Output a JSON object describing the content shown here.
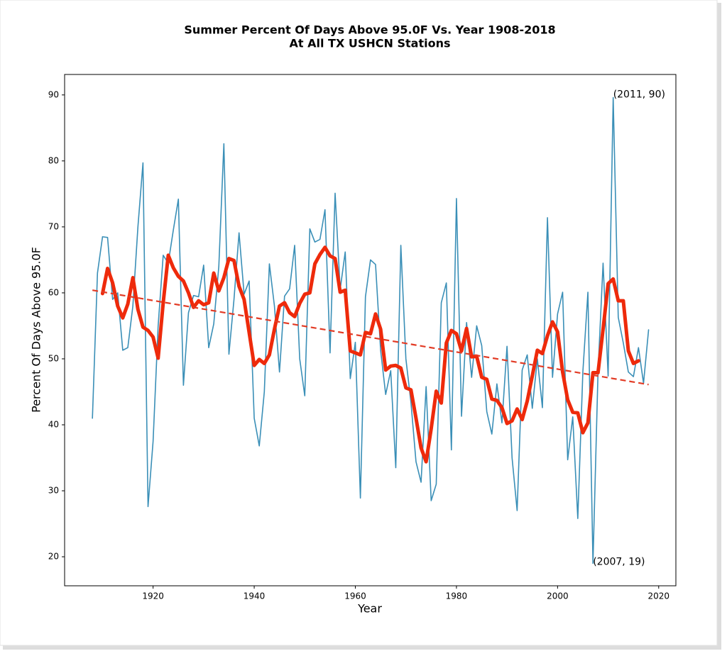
{
  "chart_data": {
    "type": "line",
    "title": "Summer Percent Of Days Above 95.0F Vs. Year 1908-2018",
    "subtitle": "At All TX USHCN Stations",
    "x_label": "Year",
    "y_label": "Percent Of Days Above 95.0F",
    "xlim": [
      1902.5,
      2023.4
    ],
    "ylim": [
      15.6,
      93.1
    ],
    "xticks": [
      1920,
      1940,
      1960,
      1980,
      2000,
      2020
    ],
    "yticks": [
      20,
      30,
      40,
      50,
      60,
      70,
      80,
      90
    ],
    "grid": false,
    "series": [
      {
        "color": "#3a8fb7",
        "linewidth": 1.6,
        "style": "solid",
        "x": [
          1908,
          1909,
          1910,
          1911,
          1912,
          1913,
          1914,
          1915,
          1916,
          1917,
          1918,
          1919,
          1920,
          1921,
          1922,
          1923,
          1924,
          1925,
          1926,
          1927,
          1928,
          1929,
          1930,
          1931,
          1932,
          1933,
          1934,
          1935,
          1936,
          1937,
          1938,
          1939,
          1940,
          1941,
          1942,
          1943,
          1944,
          1945,
          1946,
          1947,
          1948,
          1949,
          1950,
          1951,
          1952,
          1953,
          1954,
          1955,
          1956,
          1957,
          1958,
          1959,
          1960,
          1961,
          1962,
          1963,
          1964,
          1965,
          1966,
          1967,
          1968,
          1969,
          1970,
          1971,
          1972,
          1973,
          1974,
          1975,
          1976,
          1977,
          1978,
          1979,
          1980,
          1981,
          1982,
          1983,
          1984,
          1985,
          1986,
          1987,
          1988,
          1989,
          1990,
          1991,
          1992,
          1993,
          1994,
          1995,
          1996,
          1997,
          1998,
          1999,
          2000,
          2001,
          2002,
          2003,
          2004,
          2005,
          2006,
          2007,
          2008,
          2009,
          2010,
          2011,
          2012,
          2013,
          2014,
          2015,
          2016,
          2017,
          2018
        ],
        "values": [
          41,
          63,
          68.5,
          68.4,
          59,
          60,
          51.3,
          51.7,
          58,
          70,
          79.7,
          27.6,
          37.5,
          55,
          65.7,
          64.5,
          69.5,
          74.2,
          46,
          57,
          59.6,
          59.4,
          64.2,
          51.7,
          55.3,
          64,
          82.6,
          50.7,
          59,
          69.1,
          59.8,
          61.8,
          41,
          36.8,
          45,
          64.4,
          58,
          48,
          59.5,
          60.6,
          67.2,
          50,
          44.4,
          69.7,
          67.7,
          68.1,
          72.6,
          50.9,
          75.1,
          60.5,
          66.2,
          47,
          52.5,
          28.9,
          59.4,
          65,
          64.3,
          51.3,
          44.6,
          48.2,
          33.5,
          67.2,
          50,
          43.4,
          34.4,
          31.3,
          45.8,
          28.5,
          31,
          58.5,
          61.5,
          36.2,
          74.3,
          41.3,
          55.5,
          47.2,
          55,
          52,
          42,
          38.6,
          46.2,
          40.3,
          51.9,
          35,
          27,
          48.3,
          50.6,
          42.5,
          50,
          42.6,
          71.4,
          47.2,
          56.8,
          60.1,
          34.7,
          41.2,
          25.8,
          48,
          60.1,
          19,
          48,
          64.5,
          47.4,
          89.6,
          56.3,
          52.4,
          48,
          47.3,
          51.7,
          46.3,
          54.4
        ]
      },
      {
        "color": "#ee2a0b",
        "linewidth": 5,
        "style": "solid",
        "x": [
          1910,
          1911,
          1912,
          1913,
          1914,
          1915,
          1916,
          1917,
          1918,
          1919,
          1920,
          1921,
          1922,
          1923,
          1924,
          1925,
          1926,
          1927,
          1928,
          1929,
          1930,
          1931,
          1932,
          1933,
          1934,
          1935,
          1936,
          1937,
          1938,
          1939,
          1940,
          1941,
          1942,
          1943,
          1944,
          1945,
          1946,
          1947,
          1948,
          1949,
          1950,
          1951,
          1952,
          1953,
          1954,
          1955,
          1956,
          1957,
          1958,
          1959,
          1960,
          1961,
          1962,
          1963,
          1964,
          1965,
          1966,
          1967,
          1968,
          1969,
          1970,
          1971,
          1972,
          1973,
          1974,
          1975,
          1976,
          1977,
          1978,
          1979,
          1980,
          1981,
          1982,
          1983,
          1984,
          1985,
          1986,
          1987,
          1988,
          1989,
          1990,
          1991,
          1992,
          1993,
          1994,
          1995,
          1996,
          1997,
          1998,
          1999,
          2000,
          2001,
          2002,
          2003,
          2004,
          2005,
          2006,
          2007,
          2008,
          2009,
          2010,
          2011,
          2012,
          2013,
          2014,
          2015,
          2016
        ],
        "values": [
          59.9,
          63.7,
          61.5,
          58,
          56.2,
          58.3,
          62.3,
          57.5,
          54.8,
          54.3,
          53.3,
          50.1,
          58.5,
          65.7,
          63.8,
          62.5,
          61.8,
          60,
          57.8,
          58.8,
          58.2,
          58.5,
          63,
          60.3,
          62.3,
          65.2,
          64.9,
          61,
          59,
          54,
          49,
          49.9,
          49.3,
          50.6,
          54.5,
          58,
          58.5,
          57,
          56.4,
          58.4,
          59.8,
          60,
          64.4,
          65.8,
          66.9,
          65.6,
          65.2,
          60.1,
          60.4,
          51.2,
          50.9,
          50.6,
          54,
          53.8,
          56.8,
          54.5,
          48.3,
          48.9,
          49,
          48.6,
          45.6,
          45.3,
          41,
          36.5,
          34.4,
          39.4,
          45.1,
          43.3,
          52.4,
          54.3,
          53.8,
          51.2,
          54.6,
          50.3,
          50.4,
          47.2,
          46.9,
          43.9,
          43.7,
          42.6,
          40.2,
          40.6,
          42.4,
          40.8,
          43.6,
          47.4,
          51.3,
          50.8,
          53.5,
          55.6,
          54.1,
          48,
          43.8,
          41.9,
          41.8,
          38.8,
          40.3,
          47.9,
          47.9,
          54.5,
          61.4,
          62.1,
          58.8,
          58.8,
          51.2,
          49.3,
          49.7
        ]
      },
      {
        "color": "#e23b25",
        "linewidth": 2.2,
        "style": "dashed",
        "x": [
          1908,
          2018
        ],
        "values": [
          60.4,
          46.1
        ]
      }
    ],
    "annotations": [
      {
        "text": "(2011, 90)",
        "x": 2011,
        "y": 89.8
      },
      {
        "text": "(2007, 19)",
        "x": 2007,
        "y": 19
      }
    ]
  }
}
